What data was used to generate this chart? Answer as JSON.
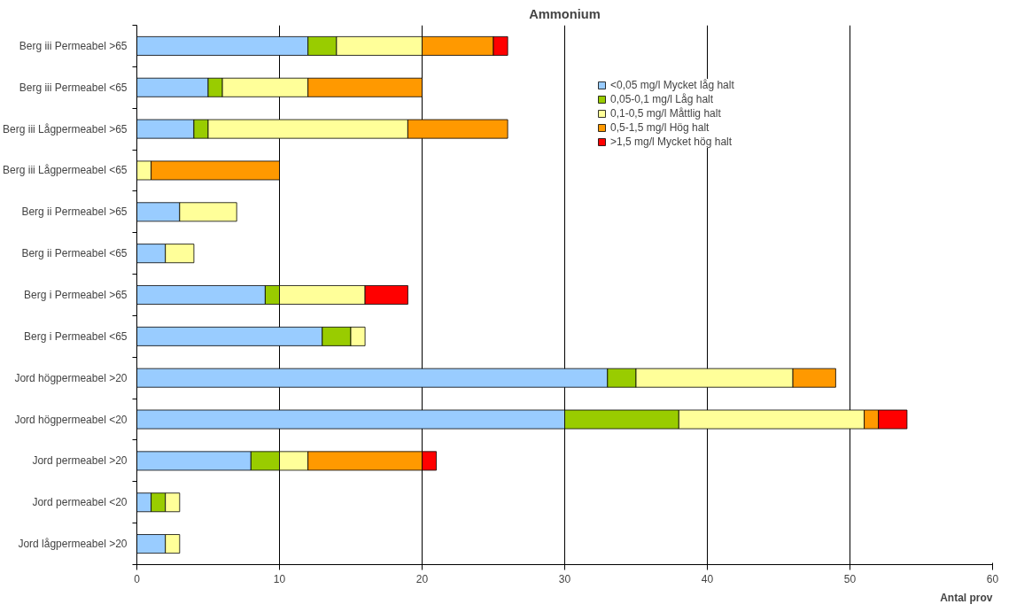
{
  "chart_data": {
    "type": "bar",
    "orientation": "horizontal",
    "stacked": true,
    "title": "Ammonium",
    "xlabel": "Antal prov",
    "categories": [
      "Berg iii Permeabel >65",
      "Berg iii Permeabel <65",
      "Berg iii Lågpermeabel >65",
      "Berg iii Lågpermeabel <65",
      "Berg ii Permeabel >65",
      "Berg ii Permeabel <65",
      "Berg i Permeabel >65",
      "Berg i Permeabel <65",
      "Jord högpermeabel >20",
      "Jord högpermeabel <20",
      "Jord permeabel >20",
      "Jord permeabel <20",
      "Jord lågpermeabel >20"
    ],
    "series": [
      {
        "name": "<0,05 mg/l Mycket låg halt",
        "color": "#99ccff",
        "values": [
          12,
          5,
          4,
          0,
          3,
          2,
          9,
          13,
          33,
          30,
          8,
          1,
          2
        ]
      },
      {
        "name": "0,05-0,1 mg/l Låg halt",
        "color": "#99cc00",
        "values": [
          2,
          1,
          1,
          0,
          0,
          0,
          1,
          2,
          2,
          8,
          2,
          1,
          0
        ]
      },
      {
        "name": "0,1-0,5 mg/l Måttlig halt",
        "color": "#ffff99",
        "values": [
          6,
          6,
          14,
          1,
          4,
          2,
          6,
          1,
          11,
          13,
          2,
          1,
          1
        ]
      },
      {
        "name": "0,5-1,5 mg/l Hög halt",
        "color": "#ff9900",
        "values": [
          5,
          8,
          7,
          9,
          0,
          0,
          0,
          0,
          3,
          1,
          8,
          0,
          0
        ]
      },
      {
        "name": ">1,5 mg/l Mycket hög halt",
        "color": "#ff0000",
        "values": [
          1,
          0,
          0,
          0,
          0,
          0,
          3,
          0,
          0,
          2,
          1,
          0,
          0
        ]
      }
    ],
    "xlim": [
      0,
      60
    ],
    "xticks": [
      0,
      10,
      20,
      30,
      40,
      50,
      60
    ],
    "grid": "x",
    "legend": "top right"
  }
}
